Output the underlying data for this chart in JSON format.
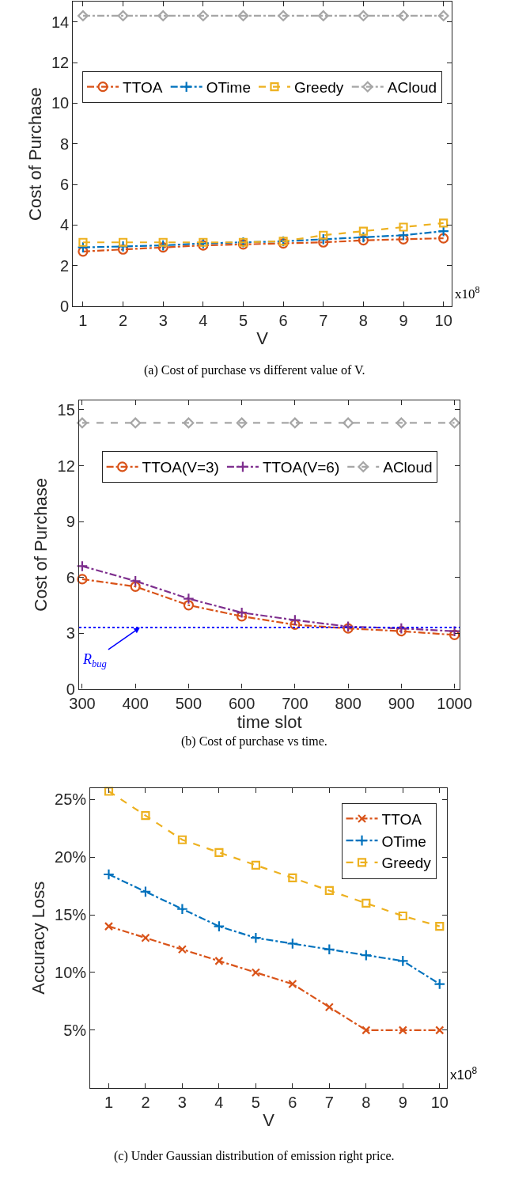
{
  "chart_data": [
    {
      "type": "line",
      "xlabel": "V",
      "ylabel": "Cost of Purchase",
      "x": [
        1,
        2,
        3,
        4,
        5,
        6,
        7,
        8,
        9,
        10
      ],
      "xlim": [
        0.75,
        10.2
      ],
      "xticks": [
        1,
        2,
        3,
        4,
        5,
        6,
        7,
        8,
        9,
        10
      ],
      "ylim": [
        0,
        15
      ],
      "yticks": [
        0,
        2,
        4,
        6,
        8,
        10,
        12,
        14
      ],
      "legend": "top",
      "series": [
        {
          "name": "TTOA",
          "color": "#d95319",
          "marker": "circle",
          "line_style": "dashdot",
          "values": [
            2.7,
            2.8,
            2.9,
            3.0,
            3.05,
            3.1,
            3.15,
            3.25,
            3.3,
            3.35
          ]
        },
        {
          "name": "OTime",
          "color": "#0072bd",
          "marker": "cross",
          "line_style": "dashdot",
          "values": [
            2.9,
            2.95,
            3.0,
            3.1,
            3.15,
            3.2,
            3.3,
            3.4,
            3.5,
            3.7
          ]
        },
        {
          "name": "Greedy",
          "color": "#edb120",
          "marker": "square",
          "line_style": "dashed",
          "values": [
            3.15,
            3.15,
            3.15,
            3.15,
            3.15,
            3.2,
            3.5,
            3.7,
            3.9,
            4.1
          ]
        },
        {
          "name": "ACloud",
          "color": "#a6a6a6",
          "marker": "diamond",
          "line_style": "dashdot",
          "values": [
            14.3,
            14.3,
            14.3,
            14.3,
            14.3,
            14.3,
            14.3,
            14.3,
            14.3,
            14.3
          ]
        }
      ],
      "annotations": [
        "x10$^{8}$",
        "(a) Cost of purchase vs different value of V."
      ]
    },
    {
      "type": "line",
      "xlabel": "time slot",
      "ylabel": "Cost of Purchase",
      "x": [
        300,
        400,
        500,
        600,
        700,
        800,
        900,
        1000
      ],
      "xlim": [
        294,
        1010
      ],
      "xticks": [
        300,
        400,
        500,
        600,
        700,
        800,
        900,
        1000
      ],
      "ylim": [
        0,
        15.5
      ],
      "yticks": [
        0,
        3,
        6,
        9,
        12,
        15
      ],
      "legend": "top",
      "series": [
        {
          "name": "TTOA(V=3)",
          "color": "#d95319",
          "marker": "circle",
          "line_style": "dashdot",
          "values": [
            5.9,
            5.5,
            4.5,
            3.9,
            3.45,
            3.25,
            3.1,
            2.9
          ]
        },
        {
          "name": "TTOA(V=6)",
          "color": "#7e2f8e",
          "marker": "cross",
          "line_style": "dashdot",
          "values": [
            6.6,
            5.8,
            4.85,
            4.1,
            3.7,
            3.35,
            3.25,
            3.1
          ]
        },
        {
          "name": "ACloud",
          "color": "#a6a6a6",
          "marker": "diamond",
          "line_style": "dashed",
          "values": [
            14.3,
            14.3,
            14.3,
            14.3,
            14.3,
            14.3,
            14.3,
            14.3
          ]
        }
      ],
      "ref_lines": [
        {
          "axis": "y",
          "value": 3.3,
          "label": "R$_{bug}$",
          "color": "#0000ff",
          "line_style": "dotted"
        }
      ],
      "annotations": [
        "(b) Cost of purchase vs time."
      ]
    },
    {
      "type": "line",
      "xlabel": "V",
      "ylabel": "Accuracy Loss",
      "x": [
        1,
        2,
        3,
        4,
        5,
        6,
        7,
        8,
        9,
        10
      ],
      "xlim": [
        0.5,
        10.2
      ],
      "xticks": [
        1,
        2,
        3,
        4,
        5,
        6,
        7,
        8,
        9,
        10
      ],
      "ylim": [
        0,
        26
      ],
      "yticks": [
        {
          "value": 5,
          "label": "5%"
        },
        {
          "value": 10,
          "label": "10%"
        },
        {
          "value": 15,
          "label": "15%"
        },
        {
          "value": 20,
          "label": "20%"
        },
        {
          "value": 25,
          "label": "25%"
        }
      ],
      "legend": "top right",
      "series": [
        {
          "name": "TTOA",
          "color": "#d95319",
          "marker": "x",
          "line_style": "dashdot",
          "values": [
            14,
            13,
            12,
            11,
            10,
            9,
            7,
            5,
            5,
            5
          ]
        },
        {
          "name": "OTime",
          "color": "#0072bd",
          "marker": "cross",
          "line_style": "dashdot",
          "values": [
            18.5,
            17,
            15.5,
            14,
            13,
            12.5,
            12,
            11.5,
            11,
            9
          ]
        },
        {
          "name": "Greedy",
          "color": "#edb120",
          "marker": "square",
          "line_style": "dashed",
          "values": [
            25.7,
            23.6,
            21.5,
            20.4,
            19.3,
            18.2,
            17.1,
            16,
            14.9,
            14
          ]
        }
      ],
      "annotations": [
        "x10$^{8}$",
        "(c) Under Gaussian distribution of emission right price."
      ]
    }
  ]
}
